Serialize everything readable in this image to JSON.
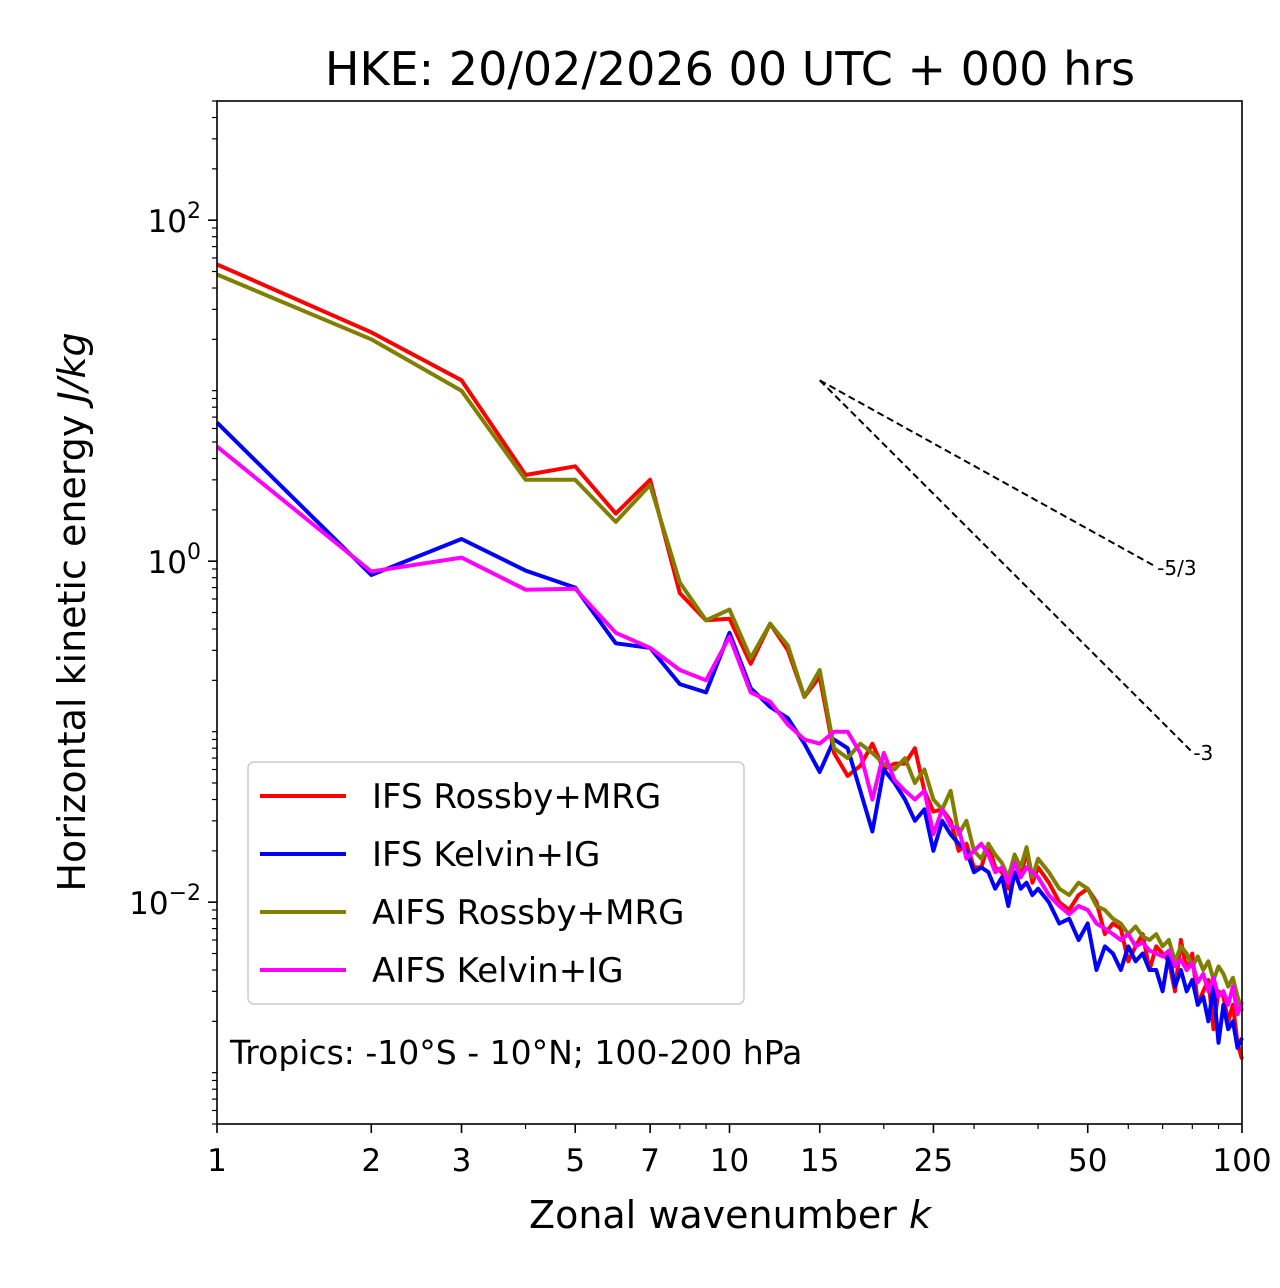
{
  "chart_data": {
    "type": "line",
    "title": "HKE: 20/02/2026 00 UTC + 000 hrs",
    "xlabel": "Zonal wavenumber",
    "xlabel_var": "k",
    "ylabel": "Horizontal kinetic energy",
    "ylabel_unit": "J/kg",
    "xscale": "log",
    "yscale": "log",
    "xlim": [
      1,
      100
    ],
    "ylim": [
      0.0005,
      500
    ],
    "x_ticks": [
      1,
      2,
      3,
      5,
      7,
      10,
      15,
      25,
      50,
      100
    ],
    "x_tick_labels": [
      "1",
      "2",
      "3",
      "5",
      "7",
      "10",
      "15",
      "25",
      "50",
      "100"
    ],
    "y_ticks": [
      0.01,
      1,
      100
    ],
    "y_tick_labels": [
      {
        "base": "10",
        "exp": "−2"
      },
      {
        "base": "10",
        "exp": "0"
      },
      {
        "base": "10",
        "exp": "2"
      }
    ],
    "annotation": "Tropics: -10°S - 10°N; 100-200 hPa",
    "legend_position": "lower-left",
    "reference_lines": [
      {
        "label": "-5/3",
        "slope": -1.6667,
        "x0": 15,
        "y0": 11.5,
        "x1": 68
      },
      {
        "label": "-3",
        "slope": -3,
        "x0": 15,
        "y0": 11.5,
        "x1": 80
      }
    ],
    "series": [
      {
        "name": "IFS Rossby+MRG",
        "color": "#ff0000",
        "x": [
          1,
          2,
          3,
          4,
          5,
          6,
          7,
          8,
          9,
          10,
          11,
          12,
          13,
          14,
          15,
          16,
          17,
          18,
          19,
          20,
          21,
          22,
          23,
          24,
          25,
          26,
          27,
          28,
          29,
          30,
          31,
          32,
          33,
          34,
          35,
          36,
          37,
          38,
          39,
          40,
          42,
          44,
          46,
          48,
          50,
          52,
          54,
          56,
          58,
          60,
          62,
          64,
          66,
          68,
          70,
          72,
          74,
          76,
          78,
          80,
          82,
          84,
          86,
          88,
          90,
          92,
          94,
          96,
          98,
          100
        ],
        "y": [
          55,
          22,
          11.5,
          3.2,
          3.6,
          1.9,
          3.0,
          0.65,
          0.45,
          0.46,
          0.25,
          0.43,
          0.3,
          0.16,
          0.21,
          0.075,
          0.055,
          0.063,
          0.085,
          0.06,
          0.065,
          0.065,
          0.08,
          0.045,
          0.034,
          0.035,
          0.03,
          0.02,
          0.022,
          0.016,
          0.016,
          0.022,
          0.016,
          0.015,
          0.012,
          0.018,
          0.014,
          0.02,
          0.013,
          0.016,
          0.013,
          0.01,
          0.009,
          0.011,
          0.012,
          0.01,
          0.0065,
          0.0075,
          0.007,
          0.0045,
          0.0055,
          0.0065,
          0.004,
          0.0055,
          0.005,
          0.0045,
          0.003,
          0.006,
          0.004,
          0.005,
          0.0025,
          0.003,
          0.0035,
          0.0018,
          0.003,
          0.0028,
          0.002,
          0.0025,
          0.0015,
          0.0012
        ]
      },
      {
        "name": "IFS Kelvin+IG",
        "color": "#0000ff",
        "x": [
          1,
          2,
          3,
          4,
          5,
          6,
          7,
          8,
          9,
          10,
          11,
          12,
          13,
          14,
          15,
          16,
          17,
          18,
          19,
          20,
          21,
          22,
          23,
          24,
          25,
          26,
          27,
          28,
          29,
          30,
          31,
          32,
          33,
          34,
          35,
          36,
          37,
          38,
          39,
          40,
          42,
          44,
          46,
          48,
          50,
          52,
          54,
          56,
          58,
          60,
          62,
          64,
          66,
          68,
          70,
          72,
          74,
          76,
          78,
          80,
          82,
          84,
          86,
          88,
          90,
          92,
          94,
          96,
          98,
          100
        ],
        "y": [
          6.5,
          0.83,
          1.35,
          0.88,
          0.7,
          0.33,
          0.31,
          0.19,
          0.17,
          0.38,
          0.18,
          0.14,
          0.12,
          0.085,
          0.058,
          0.09,
          0.08,
          0.045,
          0.026,
          0.06,
          0.05,
          0.04,
          0.03,
          0.035,
          0.02,
          0.03,
          0.025,
          0.022,
          0.02,
          0.015,
          0.016,
          0.015,
          0.012,
          0.014,
          0.0095,
          0.015,
          0.012,
          0.013,
          0.011,
          0.012,
          0.01,
          0.0075,
          0.008,
          0.006,
          0.0075,
          0.004,
          0.0055,
          0.005,
          0.004,
          0.0055,
          0.0045,
          0.005,
          0.004,
          0.004,
          0.003,
          0.005,
          0.0032,
          0.004,
          0.003,
          0.0035,
          0.0025,
          0.0028,
          0.002,
          0.0032,
          0.0015,
          0.0025,
          0.0018,
          0.002,
          0.0014,
          0.0016
        ]
      },
      {
        "name": "AIFS Rossby+MRG",
        "color": "#808000",
        "x": [
          1,
          2,
          3,
          4,
          5,
          6,
          7,
          8,
          9,
          10,
          11,
          12,
          13,
          14,
          15,
          16,
          17,
          18,
          19,
          20,
          21,
          22,
          23,
          24,
          25,
          26,
          27,
          28,
          29,
          30,
          31,
          32,
          33,
          34,
          35,
          36,
          37,
          38,
          39,
          40,
          42,
          44,
          46,
          48,
          50,
          52,
          54,
          56,
          58,
          60,
          62,
          64,
          66,
          68,
          70,
          72,
          74,
          76,
          78,
          80,
          82,
          84,
          86,
          88,
          90,
          92,
          94,
          96,
          98,
          100
        ],
        "y": [
          48,
          20,
          10,
          3.0,
          3.0,
          1.7,
          2.8,
          0.75,
          0.45,
          0.52,
          0.27,
          0.43,
          0.32,
          0.16,
          0.23,
          0.08,
          0.07,
          0.085,
          0.075,
          0.065,
          0.06,
          0.07,
          0.05,
          0.06,
          0.04,
          0.035,
          0.045,
          0.025,
          0.03,
          0.02,
          0.018,
          0.022,
          0.019,
          0.017,
          0.014,
          0.019,
          0.016,
          0.021,
          0.014,
          0.018,
          0.015,
          0.012,
          0.011,
          0.013,
          0.012,
          0.0095,
          0.009,
          0.008,
          0.0075,
          0.0065,
          0.0072,
          0.0063,
          0.006,
          0.0065,
          0.0055,
          0.006,
          0.0045,
          0.0055,
          0.005,
          0.0042,
          0.0048,
          0.004,
          0.0045,
          0.0035,
          0.0042,
          0.0038,
          0.0032,
          0.0036,
          0.0028,
          0.0023
        ]
      },
      {
        "name": "AIFS Kelvin+IG",
        "color": "#ff00ff",
        "x": [
          1,
          2,
          3,
          4,
          5,
          6,
          7,
          8,
          9,
          10,
          11,
          12,
          13,
          14,
          15,
          16,
          17,
          18,
          19,
          20,
          21,
          22,
          23,
          24,
          25,
          26,
          27,
          28,
          29,
          30,
          31,
          32,
          33,
          34,
          35,
          36,
          37,
          38,
          39,
          40,
          42,
          44,
          46,
          48,
          50,
          52,
          54,
          56,
          58,
          60,
          62,
          64,
          66,
          68,
          70,
          72,
          74,
          76,
          78,
          80,
          82,
          84,
          86,
          88,
          90,
          92,
          94,
          96,
          98,
          100
        ],
        "y": [
          4.7,
          0.87,
          1.05,
          0.68,
          0.69,
          0.38,
          0.31,
          0.23,
          0.2,
          0.36,
          0.17,
          0.15,
          0.11,
          0.09,
          0.085,
          0.1,
          0.1,
          0.075,
          0.04,
          0.075,
          0.052,
          0.045,
          0.04,
          0.045,
          0.025,
          0.035,
          0.028,
          0.027,
          0.018,
          0.02,
          0.022,
          0.019,
          0.015,
          0.016,
          0.013,
          0.017,
          0.014,
          0.016,
          0.015,
          0.014,
          0.011,
          0.0095,
          0.0085,
          0.0095,
          0.009,
          0.0075,
          0.007,
          0.0065,
          0.006,
          0.0065,
          0.0055,
          0.0058,
          0.0052,
          0.005,
          0.0048,
          0.0052,
          0.0042,
          0.0046,
          0.004,
          0.0044,
          0.0034,
          0.0038,
          0.003,
          0.0036,
          0.0028,
          0.003,
          0.0025,
          0.0032,
          0.0022,
          0.0026
        ]
      }
    ]
  }
}
